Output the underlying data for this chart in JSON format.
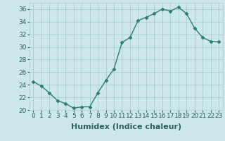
{
  "x": [
    0,
    1,
    2,
    3,
    4,
    5,
    6,
    7,
    8,
    9,
    10,
    11,
    12,
    13,
    14,
    15,
    16,
    17,
    18,
    19,
    20,
    21,
    22,
    23
  ],
  "y": [
    24.5,
    23.8,
    22.7,
    21.5,
    21.0,
    20.3,
    20.5,
    20.5,
    22.7,
    24.7,
    26.5,
    30.7,
    31.5,
    34.2,
    34.7,
    35.3,
    36.0,
    35.7,
    36.3,
    35.3,
    33.0,
    31.5,
    30.9,
    30.8
  ],
  "line_color": "#2e7d6e",
  "marker": "D",
  "markersize": 2.5,
  "linewidth": 1.0,
  "xlabel": "Humidex (Indice chaleur)",
  "xlim": [
    -0.5,
    23.5
  ],
  "ylim": [
    20,
    37
  ],
  "yticks": [
    20,
    22,
    24,
    26,
    28,
    30,
    32,
    34,
    36
  ],
  "xticks": [
    0,
    1,
    2,
    3,
    4,
    5,
    6,
    7,
    8,
    9,
    10,
    11,
    12,
    13,
    14,
    15,
    16,
    17,
    18,
    19,
    20,
    21,
    22,
    23
  ],
  "xtick_labels": [
    "0",
    "1",
    "2",
    "3",
    "4",
    "5",
    "6",
    "7",
    "8",
    "9",
    "10",
    "11",
    "12",
    "13",
    "14",
    "15",
    "16",
    "17",
    "18",
    "19",
    "20",
    "21",
    "22",
    "23"
  ],
  "background_color": "#cce8ea",
  "grid_color": "#aacccc",
  "tick_fontsize": 6.5,
  "xlabel_fontsize": 8,
  "xlabel_fontweight": "bold",
  "tick_color": "#2e6060"
}
